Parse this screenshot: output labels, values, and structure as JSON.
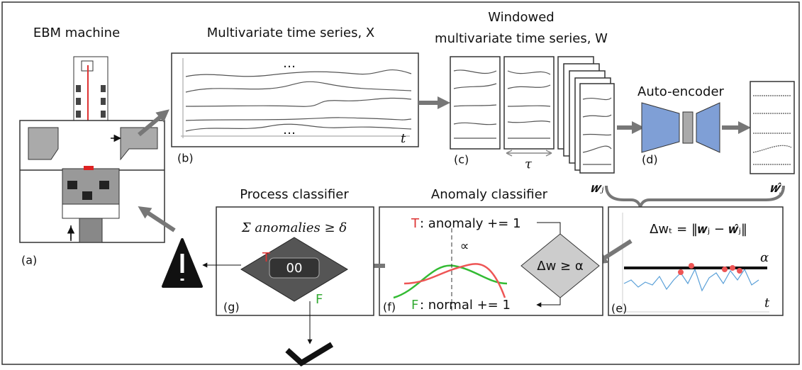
{
  "titles": {
    "ebm": "EBM machine",
    "series": "Multivariate time series, X",
    "windowed_1": "Windowed",
    "windowed_2": "multivariate time series, W",
    "autoencoder": "Auto-encoder",
    "process": "Process classifier",
    "anomaly": "Anomaly classifier"
  },
  "labels": {
    "a": "(a)",
    "b": "(b)",
    "c": "(c)",
    "d": "(d)",
    "e": "(e)",
    "f": "(f)",
    "g": "(g)"
  },
  "series_panel": {
    "time": "t",
    "ellipsis_top": "…",
    "ellipsis_bottom": "…"
  },
  "window_panel": {
    "tau": "τ",
    "w_j": "𝒘ⱼ",
    "w_hat_j": "𝒘̂ⱼ"
  },
  "error_panel": {
    "formula": "Δwₜ = ‖𝒘ⱼ − 𝒘̂ⱼ‖",
    "alpha": "α",
    "time": "t"
  },
  "anomaly_panel": {
    "condition": "Δw ≥ α",
    "true_key": "T",
    "true_text": ": anomaly += 1",
    "false_key": "F",
    "false_text": ": normal += 1",
    "symbol": "∝"
  },
  "process_panel": {
    "condition": "Σ anomalies ≥ δ",
    "counter": "00",
    "true_key": "T",
    "false_key": "F"
  }
}
